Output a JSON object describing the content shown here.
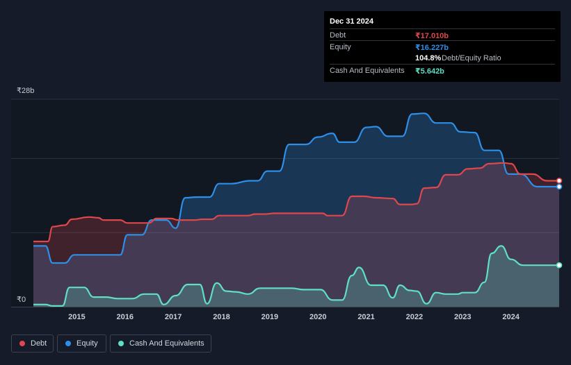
{
  "tooltip": {
    "date": "Dec 31 2024",
    "rows": [
      {
        "label": "Debt",
        "value": "₹17.010b",
        "color": "#e0474c"
      },
      {
        "label": "Equity",
        "value": "₹16.227b",
        "color": "#2e8fe8"
      },
      {
        "value": "104.8%",
        "sublabel": "Debt/Equity Ratio"
      },
      {
        "label": "Cash And Equivalents",
        "value": "₹5.642b",
        "color": "#5fe0c5"
      }
    ]
  },
  "legend": [
    {
      "label": "Debt",
      "color": "#e0474c"
    },
    {
      "label": "Equity",
      "color": "#2e8fe8"
    },
    {
      "label": "Cash And Equivalents",
      "color": "#5fe0c5"
    }
  ],
  "chart_data": {
    "type": "area",
    "title": "",
    "xlabel": "",
    "ylabel": "",
    "ylim": [
      0,
      28
    ],
    "y_tick_labels": [
      {
        "value": 28,
        "label": "₹28b"
      },
      {
        "value": 0,
        "label": "₹0"
      }
    ],
    "x_ticks": [
      2015,
      2016,
      2017,
      2018,
      2019,
      2020,
      2021,
      2022,
      2023,
      2024
    ],
    "x_range": [
      2014.1,
      2025.0
    ],
    "series": [
      {
        "name": "Debt",
        "color": "#e0474c",
        "points": [
          [
            2014.1,
            8.8
          ],
          [
            2014.4,
            8.8
          ],
          [
            2014.5,
            10.8
          ],
          [
            2014.75,
            11.0
          ],
          [
            2014.9,
            11.8
          ],
          [
            2015.25,
            12.1
          ],
          [
            2015.45,
            12.0
          ],
          [
            2015.55,
            11.7
          ],
          [
            2015.9,
            11.7
          ],
          [
            2016.05,
            11.3
          ],
          [
            2016.5,
            11.3
          ],
          [
            2016.65,
            11.9
          ],
          [
            2016.95,
            11.9
          ],
          [
            2017.1,
            11.7
          ],
          [
            2017.45,
            11.7
          ],
          [
            2017.6,
            11.8
          ],
          [
            2017.8,
            11.8
          ],
          [
            2017.95,
            12.3
          ],
          [
            2018.15,
            12.3
          ],
          [
            2018.55,
            12.3
          ],
          [
            2018.7,
            12.5
          ],
          [
            2018.9,
            12.5
          ],
          [
            2019.1,
            12.6
          ],
          [
            2019.5,
            12.6
          ],
          [
            2019.8,
            12.6
          ],
          [
            2020.1,
            12.6
          ],
          [
            2020.2,
            12.3
          ],
          [
            2020.5,
            12.3
          ],
          [
            2020.7,
            14.9
          ],
          [
            2020.95,
            14.9
          ],
          [
            2021.2,
            14.7
          ],
          [
            2021.55,
            14.6
          ],
          [
            2021.7,
            13.8
          ],
          [
            2021.95,
            13.8
          ],
          [
            2022.05,
            13.9
          ],
          [
            2022.2,
            16.0
          ],
          [
            2022.45,
            16.1
          ],
          [
            2022.65,
            17.8
          ],
          [
            2022.9,
            17.8
          ],
          [
            2023.1,
            18.6
          ],
          [
            2023.35,
            18.7
          ],
          [
            2023.55,
            19.3
          ],
          [
            2023.85,
            19.4
          ],
          [
            2024.0,
            19.3
          ],
          [
            2024.2,
            17.9
          ],
          [
            2024.45,
            17.9
          ],
          [
            2024.75,
            17.0
          ],
          [
            2025.0,
            17.0
          ]
        ]
      },
      {
        "name": "Equity",
        "color": "#2e8fe8",
        "points": [
          [
            2014.1,
            8.2
          ],
          [
            2014.35,
            8.2
          ],
          [
            2014.5,
            5.9
          ],
          [
            2014.75,
            5.9
          ],
          [
            2014.95,
            7.0
          ],
          [
            2015.2,
            7.0
          ],
          [
            2015.75,
            7.0
          ],
          [
            2015.9,
            7.0
          ],
          [
            2016.05,
            9.7
          ],
          [
            2016.35,
            9.7
          ],
          [
            2016.55,
            11.7
          ],
          [
            2016.85,
            11.7
          ],
          [
            2017.05,
            10.6
          ],
          [
            2017.25,
            14.7
          ],
          [
            2017.5,
            14.8
          ],
          [
            2017.75,
            14.8
          ],
          [
            2017.95,
            16.6
          ],
          [
            2018.2,
            16.6
          ],
          [
            2018.6,
            17.0
          ],
          [
            2018.75,
            17.0
          ],
          [
            2018.95,
            18.3
          ],
          [
            2019.2,
            18.3
          ],
          [
            2019.4,
            21.9
          ],
          [
            2019.75,
            21.9
          ],
          [
            2020.0,
            22.9
          ],
          [
            2020.3,
            23.4
          ],
          [
            2020.45,
            22.2
          ],
          [
            2020.75,
            22.2
          ],
          [
            2021.0,
            24.2
          ],
          [
            2021.2,
            24.3
          ],
          [
            2021.45,
            23.0
          ],
          [
            2021.75,
            23.0
          ],
          [
            2021.95,
            26.0
          ],
          [
            2022.2,
            26.1
          ],
          [
            2022.45,
            24.8
          ],
          [
            2022.75,
            24.8
          ],
          [
            2022.95,
            23.6
          ],
          [
            2023.25,
            23.5
          ],
          [
            2023.45,
            21.1
          ],
          [
            2023.75,
            21.1
          ],
          [
            2023.95,
            17.9
          ],
          [
            2024.2,
            17.9
          ],
          [
            2024.55,
            16.2
          ],
          [
            2025.0,
            16.2
          ]
        ]
      },
      {
        "name": "Cash And Equivalents",
        "color": "#5fe0c5",
        "points": [
          [
            2014.1,
            0.3
          ],
          [
            2014.35,
            0.3
          ],
          [
            2014.5,
            0.1
          ],
          [
            2014.7,
            0.1
          ],
          [
            2014.85,
            2.6
          ],
          [
            2015.15,
            2.6
          ],
          [
            2015.35,
            1.3
          ],
          [
            2015.6,
            1.3
          ],
          [
            2015.85,
            1.1
          ],
          [
            2016.15,
            1.1
          ],
          [
            2016.4,
            1.7
          ],
          [
            2016.65,
            1.7
          ],
          [
            2016.8,
            0.3
          ],
          [
            2017.05,
            1.5
          ],
          [
            2017.3,
            3.0
          ],
          [
            2017.55,
            3.0
          ],
          [
            2017.7,
            0.4
          ],
          [
            2017.9,
            3.2
          ],
          [
            2018.1,
            2.1
          ],
          [
            2018.3,
            2.0
          ],
          [
            2018.55,
            1.7
          ],
          [
            2018.8,
            2.5
          ],
          [
            2019.0,
            2.5
          ],
          [
            2019.2,
            2.5
          ],
          [
            2019.45,
            2.5
          ],
          [
            2019.7,
            2.3
          ],
          [
            2019.9,
            2.3
          ],
          [
            2020.05,
            2.3
          ],
          [
            2020.3,
            0.9
          ],
          [
            2020.5,
            0.9
          ],
          [
            2020.7,
            4.2
          ],
          [
            2020.85,
            5.3
          ],
          [
            2021.1,
            2.9
          ],
          [
            2021.35,
            2.9
          ],
          [
            2021.55,
            1.2
          ],
          [
            2021.7,
            2.9
          ],
          [
            2021.9,
            2.2
          ],
          [
            2022.05,
            2.1
          ],
          [
            2022.25,
            0.4
          ],
          [
            2022.45,
            1.9
          ],
          [
            2022.65,
            1.7
          ],
          [
            2022.9,
            1.7
          ],
          [
            2023.0,
            1.9
          ],
          [
            2023.25,
            1.9
          ],
          [
            2023.45,
            3.3
          ],
          [
            2023.6,
            7.2
          ],
          [
            2023.8,
            8.2
          ],
          [
            2024.0,
            6.4
          ],
          [
            2024.25,
            5.6
          ],
          [
            2024.5,
            5.6
          ],
          [
            2024.75,
            5.6
          ],
          [
            2025.0,
            5.6
          ]
        ]
      }
    ]
  }
}
